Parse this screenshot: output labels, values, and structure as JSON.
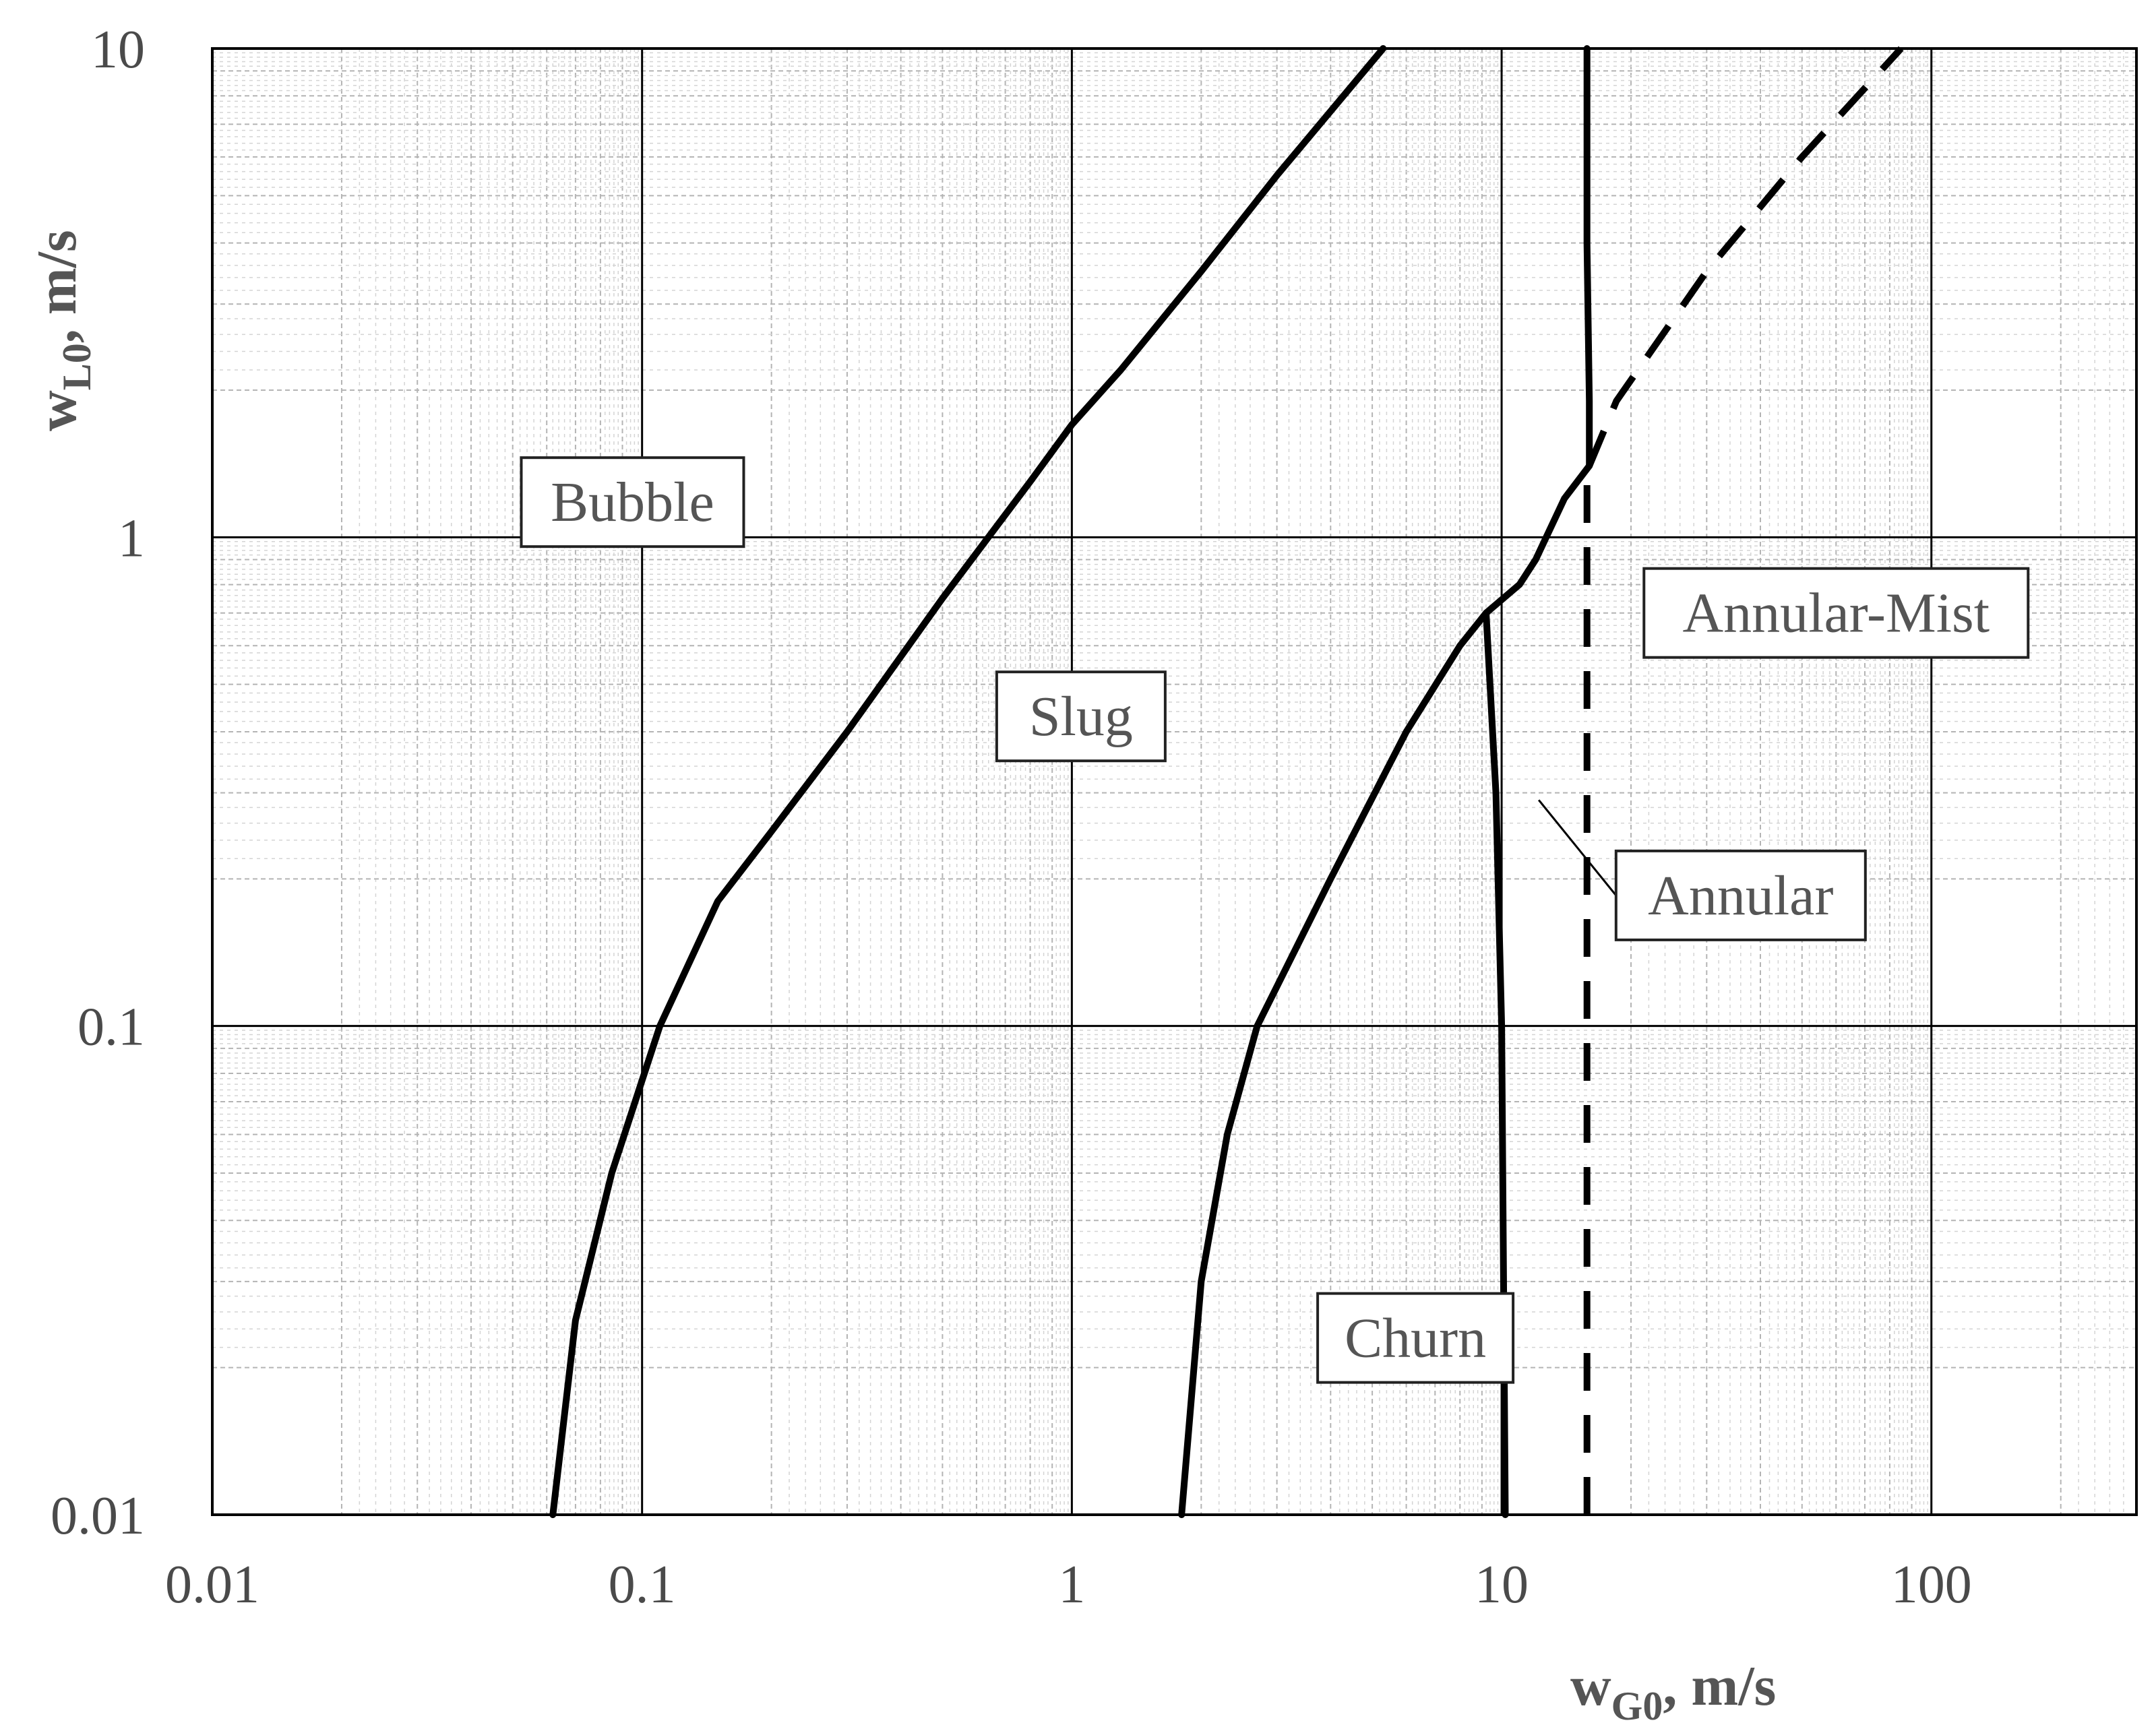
{
  "chart_data": {
    "type": "line",
    "x_scale": "log",
    "y_scale": "log",
    "xlim": [
      0.01,
      300
    ],
    "ylim": [
      0.01,
      10
    ],
    "x_ticks": [
      "0.01",
      "0.1",
      "1",
      "10",
      "100"
    ],
    "y_ticks": [
      "0.01",
      "0.1",
      "1",
      "10"
    ],
    "xlabel": {
      "main": "w",
      "sub": "G0",
      "rest": ", m/s"
    },
    "ylabel": {
      "main": "w",
      "sub": "L0",
      "rest": ", m/s"
    },
    "grid": true,
    "series": [
      {
        "style": "solid",
        "points": [
          [
            0.062,
            0.01
          ],
          [
            0.07,
            0.025
          ],
          [
            0.085,
            0.05
          ],
          [
            0.11,
            0.1
          ],
          [
            0.15,
            0.18
          ],
          [
            0.2,
            0.25
          ],
          [
            0.3,
            0.4
          ],
          [
            0.5,
            0.75
          ],
          [
            0.8,
            1.3
          ],
          [
            1.0,
            1.7
          ],
          [
            1.3,
            2.2
          ],
          [
            2.0,
            3.5
          ],
          [
            3.0,
            5.5
          ],
          [
            5.3,
            10
          ]
        ]
      },
      {
        "style": "solid",
        "points": [
          [
            1.8,
            0.01
          ],
          [
            2.0,
            0.03
          ],
          [
            2.3,
            0.06
          ],
          [
            2.7,
            0.1
          ],
          [
            4.0,
            0.2
          ],
          [
            6.0,
            0.4
          ],
          [
            8.0,
            0.6
          ],
          [
            9.2,
            0.7
          ],
          [
            11.0,
            0.8
          ],
          [
            12.0,
            0.9
          ],
          [
            14.0,
            1.2
          ],
          [
            16.0,
            1.4
          ]
        ]
      },
      {
        "style": "solid",
        "points": [
          [
            9.2,
            0.7
          ],
          [
            9.7,
            0.3
          ],
          [
            10.0,
            0.1
          ],
          [
            10.2,
            0.01
          ]
        ]
      },
      {
        "style": "solid",
        "points": [
          [
            16.0,
            1.4
          ],
          [
            16.0,
            1.9
          ],
          [
            15.8,
            4.0
          ],
          [
            15.8,
            10
          ]
        ]
      },
      {
        "style": "dashed",
        "points": [
          [
            15.8,
            0.01
          ],
          [
            15.8,
            1.4
          ]
        ]
      },
      {
        "style": "dashed",
        "points": [
          [
            16.0,
            1.4
          ],
          [
            18.5,
            1.9
          ],
          [
            30.0,
            3.5
          ],
          [
            50.0,
            6.0
          ],
          [
            85.0,
            10
          ]
        ]
      }
    ],
    "annotations": [
      {
        "text": "Bubble",
        "x": 0.095,
        "y": 1.18
      },
      {
        "text": "Slug",
        "x": 1.05,
        "y": 0.43
      },
      {
        "text": "Annular-Mist",
        "x": 60,
        "y": 0.7
      },
      {
        "text": "Annular",
        "x": 36,
        "y": 0.185,
        "leader_to": [
          12.2,
          0.29
        ]
      },
      {
        "text": "Churn",
        "x": 6.3,
        "y": 0.023
      }
    ]
  }
}
